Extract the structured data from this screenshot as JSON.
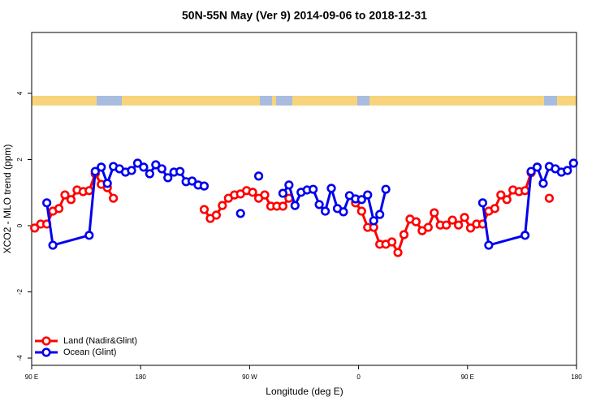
{
  "chart_data": {
    "type": "line",
    "title": "50N-55N May (Ver 9)   2014-09-06 to 2018-12-31",
    "xlabel": "Longitude (deg E)",
    "ylabel": "XCO2 - MLO trend (ppm)",
    "xlim": [
      90,
      540
    ],
    "xticks": [
      {
        "value": 90,
        "label": "90 E"
      },
      180,
      {
        "value": 270,
        "label": "90 W"
      },
      {
        "value": 360,
        "label": "0"
      },
      {
        "value": 450,
        "label": "90 E"
      },
      {
        "value": 540,
        "label": "180"
      }
    ],
    "ylim": [
      -4.22,
      5.84
    ],
    "yticks": [
      -4,
      -2,
      0,
      2,
      4
    ],
    "legend": "bottomleft",
    "series": [
      {
        "name": "Land (Nadir&Glint)",
        "color": "#ff0000",
        "x": [
          92.5,
          97.5,
          102.5,
          107.5,
          112.5,
          117.5,
          122.5,
          127.5,
          132.5,
          137.5,
          142.5,
          147.5,
          152.5,
          157.5,
          162.5,
          232.5,
          237.5,
          242.5,
          247.5,
          252.5,
          257.5,
          262.5,
          267.5,
          272.5,
          277.5,
          282.5,
          287.5,
          292.5,
          297.5,
          302.5,
          307.5,
          357.5,
          362.5,
          367.5,
          372.5,
          377.5,
          382.5,
          387.5,
          392.5,
          397.5,
          402.5,
          407.5,
          412.5,
          417.5,
          422.5,
          427.5,
          432.5,
          437.5,
          442.5,
          447.5,
          452.5,
          457.5,
          462.5,
          467.5,
          472.5,
          477.5,
          482.5,
          487.5,
          492.5,
          497.5,
          502.5,
          507.5,
          517.5
        ],
        "values": [
          -0.07,
          0.05,
          0.05,
          0.44,
          0.52,
          0.93,
          0.79,
          1.08,
          1.03,
          1.06,
          1.57,
          1.25,
          1.15,
          0.83,
          null,
          0.49,
          0.22,
          0.32,
          0.61,
          0.83,
          0.93,
          0.96,
          1.06,
          1.01,
          0.83,
          0.93,
          0.59,
          0.59,
          0.59,
          0.83,
          null,
          0.69,
          0.44,
          -0.05,
          -0.05,
          -0.56,
          -0.56,
          -0.49,
          -0.81,
          -0.27,
          0.2,
          0.12,
          -0.15,
          -0.05,
          0.39,
          0.02,
          0.02,
          0.17,
          0.02,
          0.25,
          -0.07,
          0.05,
          0.05,
          0.44,
          0.52,
          0.93,
          0.79,
          1.08,
          1.03,
          1.06,
          1.6,
          null,
          0.83
        ]
      },
      {
        "name": "Ocean (Glint)",
        "color": "#0000ee",
        "x": [
          102.5,
          107.5,
          137.5,
          142.5,
          147.5,
          152.5,
          157.5,
          162.5,
          167.5,
          172.5,
          177.5,
          182.5,
          187.5,
          192.5,
          197.5,
          202.5,
          207.5,
          212.5,
          217.5,
          222.5,
          227.5,
          232.5,
          237.5,
          262.5,
          267.5,
          277.5,
          282.5,
          297.5,
          302.5,
          307.5,
          312.5,
          317.5,
          322.5,
          327.5,
          332.5,
          337.5,
          342.5,
          347.5,
          352.5,
          357.5,
          362.5,
          367.5,
          372.5,
          377.5,
          382.5,
          387.5,
          462.5,
          467.5,
          497.5,
          502.5,
          507.5,
          512.5,
          517.5,
          522.5,
          527.5,
          532.5,
          537.5
        ],
        "values": [
          0.69,
          -0.59,
          -0.29,
          1.64,
          1.77,
          1.28,
          1.79,
          1.72,
          1.62,
          1.67,
          1.89,
          1.77,
          1.57,
          1.84,
          1.72,
          1.45,
          1.62,
          1.64,
          1.33,
          1.35,
          1.23,
          1.2,
          null,
          0.37,
          null,
          1.5,
          null,
          0.98,
          1.23,
          0.61,
          1.01,
          1.08,
          1.1,
          0.64,
          0.44,
          1.13,
          0.52,
          0.42,
          0.91,
          0.81,
          0.79,
          0.93,
          0.15,
          0.34,
          1.1,
          null,
          0.69,
          -0.59,
          -0.29,
          1.64,
          1.77,
          1.28,
          1.79,
          1.72,
          1.62,
          1.67,
          1.89
        ]
      }
    ]
  }
}
